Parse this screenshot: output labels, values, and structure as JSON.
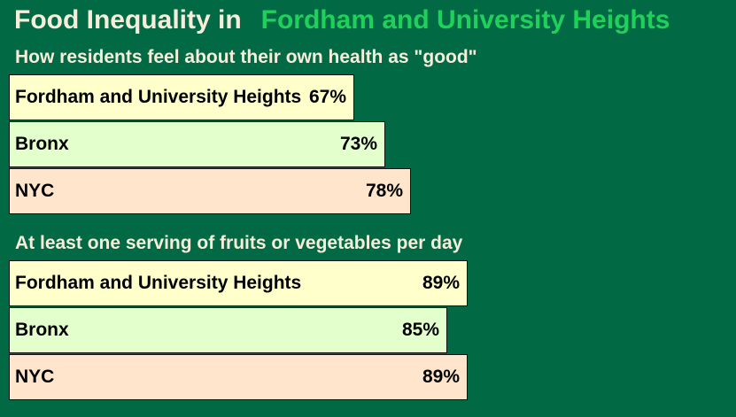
{
  "title": {
    "prefix": "Food Inequality in",
    "highlight": "Fordham and University Heights",
    "prefix_color": "#f6eedb",
    "highlight_color": "#1fd15a"
  },
  "colors": {
    "background": "#026945",
    "section_title": "#f6eedb",
    "bar_colors": [
      "#ffffcc",
      "#e2ffcc",
      "#ffe5cc"
    ]
  },
  "chart_data": [
    {
      "type": "bar",
      "orientation": "horizontal",
      "title": "How residents feel about their own health as \"good\"",
      "categories": [
        "Fordham and University Heights",
        "Bronx",
        "NYC"
      ],
      "values": [
        67,
        73,
        78
      ],
      "value_labels": [
        "67%",
        "73%",
        "78%"
      ],
      "xlim": [
        0,
        100
      ]
    },
    {
      "type": "bar",
      "orientation": "horizontal",
      "title": "At least one serving of fruits or vegetables per day",
      "categories": [
        "Fordham and University Heights",
        "Bronx",
        "NYC"
      ],
      "values": [
        89,
        85,
        89
      ],
      "value_labels": [
        "89%",
        "85%",
        "89%"
      ],
      "xlim": [
        0,
        100
      ]
    }
  ]
}
